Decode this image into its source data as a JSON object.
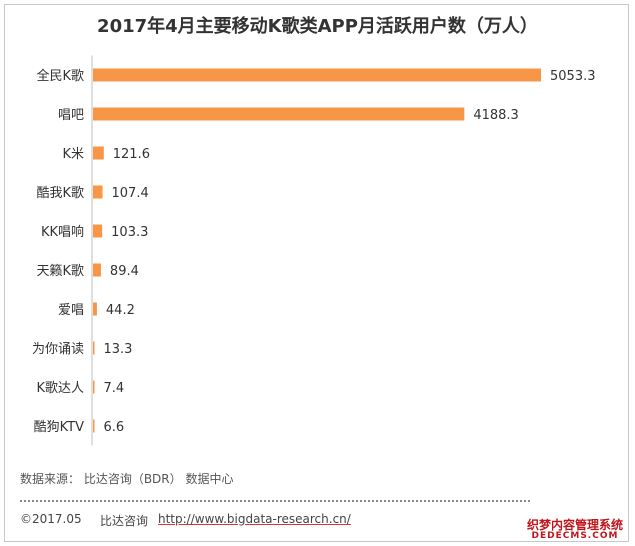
{
  "chart_data": {
    "type": "bar",
    "orientation": "horizontal",
    "title": "2017年4月主要移动K歌类APP月活跃用户数（万人）",
    "categories": [
      "全民K歌",
      "唱吧",
      "K米",
      "酷我K歌",
      "KK唱响",
      "天籁K歌",
      "爱唱",
      "为你诵读",
      "K歌达人",
      "酷狗KTV"
    ],
    "values": [
      5053.3,
      4188.3,
      121.6,
      107.4,
      103.3,
      89.4,
      44.2,
      13.3,
      7.4,
      6.6
    ],
    "value_labels": [
      "5053.3",
      "4188.3",
      "121.6",
      "107.4",
      "103.3",
      "89.4",
      "44.2",
      "13.3",
      "7.4",
      "6.6"
    ],
    "xlim": [
      0,
      5053.3
    ],
    "grid": false,
    "legend": "none",
    "bar_color": "#F79646"
  },
  "source": "数据来源： 比达咨询（BDR） 数据中心",
  "footer": {
    "copyright": "©2017.05",
    "company": "比达咨询",
    "url": "http://www.bigdata-research.cn/"
  },
  "watermark": {
    "line1": "织梦内容管理系统",
    "line2": "DEDECMS.COM"
  }
}
